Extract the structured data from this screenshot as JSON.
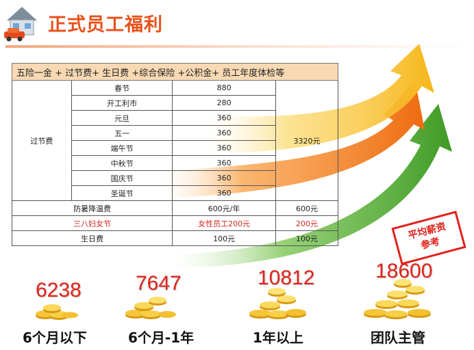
{
  "page_title": "正式员工福利",
  "table": {
    "header": "五险一金 + 过节费+ 生日费 +综合保险 +公积金+ 员工年度体检等",
    "holiday_group_label": "过节费",
    "holiday_total": "3320元",
    "holidays": [
      {
        "name": "春节",
        "amount": "880"
      },
      {
        "name": "开工利市",
        "amount": "280"
      },
      {
        "name": "元旦",
        "amount": "360"
      },
      {
        "name": "五一",
        "amount": "360"
      },
      {
        "name": "端午节",
        "amount": "360"
      },
      {
        "name": "中秋节",
        "amount": "360"
      },
      {
        "name": "国庆节",
        "amount": "360"
      },
      {
        "name": "圣诞节",
        "amount": "360"
      }
    ],
    "extra_rows": [
      {
        "name": "防暑降温费",
        "amount": "600元/年",
        "total": "600元",
        "highlight": false
      },
      {
        "name": "三八妇女节",
        "amount": "女性员工200元",
        "total": "200元",
        "highlight": true
      },
      {
        "name": "生日费",
        "amount": "100元",
        "total": "100元",
        "highlight": false
      }
    ]
  },
  "stamp": {
    "line1": "平均薪资",
    "line2": "参考"
  },
  "tiers": [
    {
      "salary": "6238",
      "label": "6个月以下"
    },
    {
      "salary": "7647",
      "label": "6个月-1年"
    },
    {
      "salary": "10812",
      "label": "1年以上"
    },
    {
      "salary": "18600",
      "label": "团队主管"
    }
  ],
  "colors": {
    "title": "#e8501a",
    "salary": "#e2231a",
    "arrow_yellow": "#f9c02a",
    "arrow_orange": "#f07a16",
    "arrow_green": "#4aa52a",
    "header_fill": "#f8d9b4"
  }
}
